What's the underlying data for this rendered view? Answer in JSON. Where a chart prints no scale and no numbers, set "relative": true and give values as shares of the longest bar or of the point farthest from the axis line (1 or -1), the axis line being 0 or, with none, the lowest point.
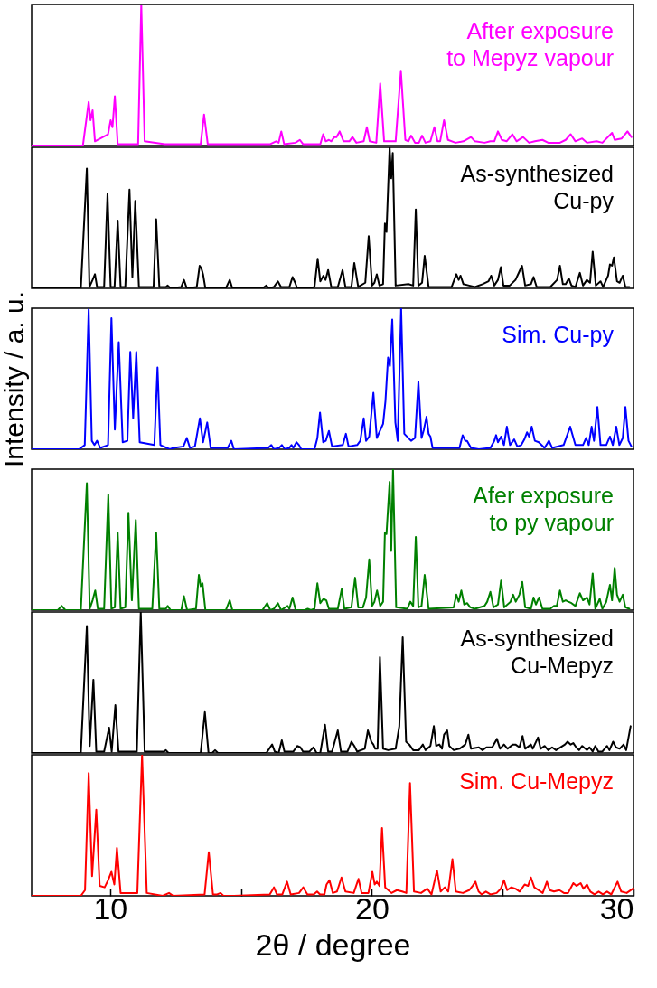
{
  "chart_data": [
    {
      "type": "line",
      "relative": true,
      "xlim": [
        7,
        30
      ],
      "tick_labels": false,
      "series": [
        {
          "name": "After exposure\nto Mepyz vapour",
          "color": "#ff00ff",
          "x": [
            7,
            8.96,
            9.18,
            9.25,
            9.33,
            9.42,
            9.92,
            10.02,
            10.09,
            10.18,
            10.29,
            11.07,
            11.19,
            11.32,
            12.09,
            12.13,
            13.46,
            13.59,
            13.73,
            14.64,
            16.12,
            16.34,
            16.44,
            16.54,
            16.65,
            17.08,
            17.25,
            17.37,
            18.03,
            18.14,
            18.24,
            18.36,
            18.45,
            18.57,
            18.65,
            18.77,
            18.92,
            19.14,
            19.26,
            19.41,
            19.69,
            19.81,
            19.92,
            20.17,
            20.32,
            20.47,
            20.91,
            21.11,
            21.28,
            21.4,
            21.5,
            21.65,
            21.8,
            21.92,
            22.05,
            22.24,
            22.39,
            22.51,
            22.61,
            22.76,
            22.91,
            23.2,
            23.5,
            23.79,
            23.94,
            24.31,
            24.53,
            24.68,
            24.82,
            24.97,
            25.15,
            25.37,
            25.53,
            25.78,
            26.01,
            26.23,
            26.52,
            26.74,
            27.19,
            27.41,
            27.6,
            27.78,
            28.04,
            28.22,
            28.59,
            28.81,
            29.18,
            29.28,
            29.55,
            29.77,
            29.92
          ],
          "values": [
            0,
            0,
            0.31,
            0.18,
            0.25,
            0.03,
            0.08,
            0.18,
            0.13,
            0.35,
            0.01,
            0.01,
            1,
            0.03,
            0.01,
            0.01,
            0.01,
            0.22,
            0.01,
            0.01,
            0.01,
            0.03,
            0.02,
            0.1,
            0.01,
            0.02,
            0.04,
            0.01,
            0.01,
            0.08,
            0.03,
            0.04,
            0.03,
            0.06,
            0.06,
            0.1,
            0.03,
            0.03,
            0.06,
            0.02,
            0.03,
            0.13,
            0.03,
            0.02,
            0.44,
            0.03,
            0.03,
            0.53,
            0.04,
            0.03,
            0.07,
            0.02,
            0.02,
            0.07,
            0.02,
            0.03,
            0.13,
            0.03,
            0.03,
            0.18,
            0.04,
            0.02,
            0.03,
            0.06,
            0.03,
            0.02,
            0.03,
            0.03,
            0.1,
            0.04,
            0.03,
            0.08,
            0.03,
            0.06,
            0.02,
            0.03,
            0.04,
            0.02,
            0.02,
            0.04,
            0.08,
            0.03,
            0.05,
            0.02,
            0.03,
            0.02,
            0.09,
            0.04,
            0.05,
            0.1,
            0.06
          ]
        }
      ]
    },
    {
      "type": "line",
      "relative": true,
      "xlim": [
        7,
        30
      ],
      "tick_labels": false,
      "series": [
        {
          "name": "As-synthesized\nCu-py",
          "color": "#000000",
          "x": [
            7,
            8.88,
            9.11,
            9.21,
            9.33,
            9.42,
            9.5,
            9.77,
            9.9,
            10.02,
            10.17,
            10.29,
            10.4,
            10.58,
            10.74,
            10.85,
            10.96,
            11.1,
            11.66,
            11.76,
            11.88,
            12.13,
            12.2,
            12.31,
            12.72,
            12.82,
            12.93,
            13.31,
            13.42,
            13.49,
            13.55,
            13.64,
            14.42,
            14.57,
            14.67,
            15.82,
            15.97,
            16.06,
            16.26,
            16.41,
            16.53,
            16.85,
            16.97,
            17.07,
            17.15,
            17.59,
            17.81,
            17.93,
            18.03,
            18.15,
            18.23,
            18.33,
            18.45,
            18.7,
            18.88,
            18.99,
            19.22,
            19.33,
            19.48,
            19.75,
            19.88,
            20.01,
            20.1,
            20.19,
            20.29,
            20.43,
            20.5,
            20.56,
            20.68,
            20.74,
            20.8,
            20.91,
            21.4,
            21.58,
            21.68,
            21.78,
            21.92,
            22.02,
            22.17,
            23.05,
            23.23,
            23.32,
            23.39,
            23.5,
            23.72,
            23.94,
            24.23,
            24.46,
            24.56,
            24.68,
            24.82,
            24.93,
            25.03,
            25.27,
            25.49,
            25.64,
            25.74,
            25.86,
            26.08,
            26.18,
            26.3,
            26.6,
            26.82,
            27.08,
            27.19,
            27.3,
            27.41,
            27.53,
            27.63,
            27.78,
            27.95,
            28.07,
            28.22,
            28.34,
            28.44,
            28.56,
            28.74,
            28.84,
            29.03,
            29.1,
            29.18,
            29.25,
            29.37,
            29.47,
            29.59,
            29.69,
            29.84
          ],
          "values": [
            0,
            0,
            0.85,
            0.01,
            0.06,
            0.1,
            0.01,
            0.01,
            0.67,
            0.01,
            0.01,
            0.48,
            0.01,
            0.01,
            0.7,
            0.08,
            0.62,
            0.01,
            0.01,
            0.49,
            0.01,
            0.01,
            0.02,
            0,
            0.01,
            0.06,
            0,
            0.01,
            0.16,
            0.14,
            0.1,
            0,
            0,
            0.06,
            0,
            0,
            0.02,
            0,
            0.01,
            0.05,
            0.01,
            0.01,
            0.08,
            0.04,
            0,
            0,
            0.01,
            0.21,
            0.05,
            0.09,
            0.06,
            0.13,
            0.01,
            0.01,
            0.13,
            0.01,
            0.01,
            0.18,
            0.01,
            0.04,
            0.37,
            0.02,
            0.04,
            0.1,
            0.02,
            0.03,
            0.46,
            0.4,
            1,
            0.78,
            0.96,
            0.02,
            0.03,
            0.02,
            0.56,
            0.02,
            0.04,
            0.23,
            0.01,
            0.01,
            0.1,
            0.06,
            0.09,
            0.03,
            0.02,
            0.01,
            0.03,
            0.05,
            0.09,
            0.02,
            0.06,
            0.15,
            0.02,
            0.02,
            0.06,
            0.12,
            0.16,
            0.02,
            0.03,
            0.08,
            0.01,
            0.01,
            0.01,
            0.06,
            0.16,
            0.03,
            0.03,
            0.07,
            0.02,
            0.01,
            0.11,
            0.02,
            0.06,
            0.04,
            0.26,
            0.02,
            0.05,
            0.01,
            0.09,
            0.17,
            0.16,
            0.22,
            0.05,
            0.04,
            0.09,
            0.01,
            0.01
          ]
        }
      ]
    },
    {
      "type": "line",
      "relative": true,
      "xlim": [
        7,
        30
      ],
      "tick_labels": false,
      "ylabel": "Intensity / a. u.",
      "series": [
        {
          "name": "Sim. Cu-py",
          "color": "#0000ff",
          "x": [
            7,
            8.81,
            9.03,
            9.18,
            9.3,
            9.4,
            9.5,
            9.62,
            9.92,
            10.05,
            10.18,
            10.33,
            10.48,
            10.66,
            10.77,
            10.88,
            11,
            11.13,
            11.69,
            11.81,
            11.92,
            12.28,
            12.43,
            12.8,
            12.93,
            13.05,
            13.24,
            13.43,
            13.55,
            13.71,
            13.84,
            14.49,
            14.63,
            14.73,
            16.04,
            16.16,
            16.26,
            16.46,
            16.56,
            16.68,
            16.85,
            16.93,
            17,
            17.12,
            17.22,
            17.3,
            17.81,
            17.92,
            18.02,
            18.14,
            18.24,
            18.36,
            18.48,
            18.89,
            19.01,
            19.11,
            19.44,
            19.56,
            19.69,
            19.78,
            19.9,
            20.06,
            20.19,
            20.43,
            20.52,
            20.62,
            20.69,
            20.78,
            20.9,
            20.99,
            21.12,
            21.24,
            21.5,
            21.65,
            21.78,
            21.9,
            21.99,
            22.09,
            22.17,
            22.24,
            22.32,
            23.35,
            23.47,
            23.57,
            23.64,
            23.79,
            24.09,
            24.53,
            24.68,
            24.75,
            24.82,
            24.94,
            25.05,
            25.16,
            25.28,
            25.44,
            25.56,
            25.71,
            25.83,
            25.93,
            26.01,
            26.11,
            26.23,
            26.38,
            26.6,
            26.77,
            26.89,
            27.33,
            27.58,
            27.78,
            28.07,
            28.19,
            28.29,
            28.4,
            28.49,
            28.62,
            28.74,
            28.96,
            29.1,
            29.21,
            29.34,
            29.46,
            29.59,
            29.69,
            29.81,
            29.92
          ],
          "values": [
            0,
            0,
            0.03,
            0.99,
            0.06,
            0.03,
            0.06,
            0.01,
            0.03,
            0.93,
            0.14,
            0.76,
            0.05,
            0.06,
            0.69,
            0.22,
            0.69,
            0.05,
            0.03,
            0.58,
            0.03,
            0,
            0.01,
            0.02,
            0.08,
            0.01,
            0.02,
            0.22,
            0.05,
            0.19,
            0.01,
            0.01,
            0.06,
            0,
            0.01,
            0.03,
            0,
            0.01,
            0.03,
            0,
            0.01,
            0.03,
            0.01,
            0.05,
            0.03,
            0,
            0,
            0.08,
            0.26,
            0.05,
            0.06,
            0.13,
            0.02,
            0.03,
            0.11,
            0.02,
            0.03,
            0.06,
            0.22,
            0.06,
            0.09,
            0.4,
            0.08,
            0.18,
            0.34,
            0.65,
            0.59,
            0.92,
            0.19,
            0.06,
            1,
            0.11,
            0.06,
            0.08,
            0.48,
            0.08,
            0.14,
            0.23,
            0.11,
            0.09,
            0.01,
            0.01,
            0.1,
            0.06,
            0.06,
            0.01,
            0,
            0.01,
            0.06,
            0.1,
            0.05,
            0.09,
            0.03,
            0.16,
            0.03,
            0.07,
            0.02,
            0.03,
            0.07,
            0.12,
            0.09,
            0.16,
            0.06,
            0.05,
            0.01,
            0.06,
            0.01,
            0.03,
            0.16,
            0.03,
            0.03,
            0.08,
            0.03,
            0.16,
            0.06,
            0.3,
            0.03,
            0.03,
            0.09,
            0.03,
            0.16,
            0.03,
            0.08,
            0.3,
            0.06,
            0.02
          ]
        }
      ]
    },
    {
      "type": "line",
      "relative": true,
      "xlim": [
        7,
        30
      ],
      "tick_labels": false,
      "series": [
        {
          "name": "Afer exposure\nto py vapour",
          "color": "#008000",
          "x": [
            7,
            8,
            8.15,
            8.29,
            8.88,
            9.11,
            9.22,
            9.33,
            9.43,
            9.53,
            9.77,
            9.93,
            10.05,
            10.18,
            10.29,
            10.4,
            10.58,
            10.7,
            10.83,
            10.98,
            11.1,
            11.61,
            11.76,
            11.88,
            12.13,
            12.2,
            12.31,
            12.72,
            12.82,
            12.94,
            13.28,
            13.39,
            13.46,
            13.53,
            13.64,
            14.42,
            14.57,
            14.67,
            15.82,
            16,
            16.12,
            16.26,
            16.41,
            16.53,
            16.78,
            16.85,
            16.97,
            17.09,
            17.44,
            17.55,
            17.67,
            17.81,
            17.92,
            18.03,
            18.15,
            18.26,
            18.36,
            18.7,
            18.85,
            18.95,
            19.22,
            19.36,
            19.48,
            19.66,
            19.78,
            19.9,
            20.01,
            20.1,
            20.2,
            20.32,
            20.43,
            20.5,
            20.56,
            20.68,
            20.74,
            20.81,
            20.93,
            21.36,
            21.47,
            21.58,
            21.68,
            21.78,
            21.9,
            22.02,
            22.17,
            23.13,
            23.23,
            23.32,
            23.42,
            23.53,
            23.64,
            23.76,
            23.94,
            24.31,
            24.41,
            24.53,
            24.65,
            24.82,
            24.94,
            25.06,
            25.3,
            25.4,
            25.5,
            25.64,
            25.75,
            25.86,
            26.08,
            26.18,
            26.27,
            26.39,
            26.52,
            26.82,
            26.96,
            27.07,
            27.19,
            27.3,
            27.41,
            27.51,
            27.63,
            27.78,
            27.95,
            28.07,
            28.22,
            28.32,
            28.44,
            28.54,
            28.71,
            28.81,
            28.96,
            29.1,
            29.18,
            29.28,
            29.37,
            29.47,
            29.59,
            29.69,
            29.84
          ],
          "values": [
            0,
            0,
            0.03,
            0,
            0,
            0.9,
            0.01,
            0.07,
            0.14,
            0.01,
            0.01,
            0.82,
            0.01,
            0.02,
            0.55,
            0.01,
            0.02,
            0.69,
            0.07,
            0.64,
            0.01,
            0.01,
            0.55,
            0.01,
            0.01,
            0.03,
            0,
            0,
            0.1,
            0,
            0.01,
            0.25,
            0.17,
            0.19,
            0,
            0,
            0.07,
            0,
            0,
            0.05,
            0,
            0.01,
            0.05,
            0,
            0.03,
            0.01,
            0.09,
            0,
            0,
            0.01,
            0,
            0.01,
            0.19,
            0.05,
            0.08,
            0.07,
            0.01,
            0.01,
            0.15,
            0.01,
            0.02,
            0.23,
            0.02,
            0.02,
            0.09,
            0.36,
            0.03,
            0.06,
            0.14,
            0.03,
            0.06,
            0.55,
            0.54,
            0.91,
            0.42,
            1,
            0.02,
            0.01,
            0.06,
            0.03,
            0.52,
            0.02,
            0.03,
            0.25,
            0.01,
            0.02,
            0.11,
            0.06,
            0.14,
            0.04,
            0.05,
            0.02,
            0.01,
            0.03,
            0.06,
            0.13,
            0.02,
            0.04,
            0.21,
            0.02,
            0.06,
            0.11,
            0.06,
            0.11,
            0.2,
            0.02,
            0.01,
            0.09,
            0.04,
            0.09,
            0.01,
            0.01,
            0.03,
            0.03,
            0.14,
            0.06,
            0.07,
            0.06,
            0.05,
            0.03,
            0.12,
            0.07,
            0.09,
            0.04,
            0.26,
            0.01,
            0.08,
            0.01,
            0.06,
            0.18,
            0.07,
            0.3,
            0.11,
            0.06,
            0.11,
            0.02,
            0.01
          ]
        }
      ]
    },
    {
      "type": "line",
      "relative": true,
      "xlim": [
        7,
        30
      ],
      "tick_labels": false,
      "series": [
        {
          "name": "As-synthesized\nCu-Mepyz",
          "color": "#000000",
          "x": [
            7,
            8.88,
            9.11,
            9.22,
            9.36,
            9.47,
            9.77,
            9.96,
            10.06,
            10.2,
            10.32,
            11.02,
            11.17,
            11.32,
            12.06,
            12.13,
            12.23,
            12.8,
            13.46,
            13.62,
            13.76,
            13.9,
            14.01,
            14.12,
            15.97,
            16.19,
            16.29,
            16.44,
            16.56,
            16.66,
            17,
            17.15,
            17.27,
            17.37,
            17.62,
            17.77,
            17.89,
            18.03,
            18.21,
            18.33,
            18.48,
            18.7,
            18.82,
            19.07,
            19.22,
            19.33,
            19.44,
            19.73,
            19.85,
            19.98,
            20.06,
            20.13,
            20.22,
            20.31,
            20.43,
            20.62,
            20.91,
            21.05,
            21.18,
            21.31,
            21.43,
            21.58,
            21.8,
            21.95,
            22.05,
            22.24,
            22.37,
            22.46,
            22.58,
            22.68,
            22.76,
            22.88,
            22.96,
            23.13,
            23.35,
            23.57,
            23.69,
            23.79,
            24.09,
            24.23,
            24.38,
            24.6,
            24.78,
            24.9,
            25.05,
            25.19,
            25.39,
            25.49,
            25.64,
            25.76,
            25.86,
            26.08,
            26.15,
            26.35,
            26.45,
            26.6,
            26.74,
            26.89,
            27.04,
            27.38,
            27.48,
            27.6,
            27.7,
            27.81,
            27.92,
            28.04,
            28.22,
            28.32,
            28.44,
            28.54,
            28.66,
            28.81,
            28.99,
            29.08,
            29.22,
            29.33,
            29.47,
            29.62,
            29.72,
            29.89
          ],
          "values": [
            0,
            0,
            0.9,
            0.05,
            0.52,
            0.01,
            0.01,
            0.18,
            0.01,
            0.34,
            0.01,
            0.01,
            1,
            0.01,
            0.01,
            0.02,
            0,
            0,
            0,
            0.29,
            0,
            0,
            0.02,
            0,
            0,
            0.06,
            0.01,
            0,
            0.09,
            0.01,
            0.01,
            0.05,
            0.04,
            0.01,
            0.01,
            0.04,
            0,
            0,
            0.2,
            0.01,
            0.01,
            0.16,
            0.01,
            0.01,
            0.08,
            0.05,
            0.01,
            0.03,
            0.16,
            0.08,
            0.06,
            0.03,
            0.03,
            0.68,
            0.03,
            0.02,
            0.03,
            0.19,
            0.82,
            0.08,
            0.06,
            0.02,
            0.02,
            0.06,
            0.02,
            0.05,
            0.19,
            0.05,
            0.06,
            0.03,
            0.13,
            0.16,
            0.05,
            0.02,
            0.03,
            0.06,
            0.13,
            0.03,
            0.04,
            0.02,
            0.04,
            0.04,
            0.1,
            0.03,
            0.06,
            0.03,
            0.06,
            0.06,
            0.04,
            0.12,
            0.03,
            0.06,
            0.03,
            0.11,
            0.03,
            0.05,
            0.02,
            0.04,
            0.02,
            0.06,
            0.08,
            0.06,
            0.07,
            0.04,
            0.02,
            0.05,
            0.02,
            0.04,
            0.01,
            0.05,
            0.01,
            0.01,
            0.05,
            0.02,
            0.08,
            0.04,
            0.03,
            0.06,
            0.02,
            0.19
          ]
        }
      ]
    },
    {
      "type": "line",
      "relative": true,
      "xlim": [
        7,
        30
      ],
      "xticks": [
        10,
        {
          "value": 15,
          "label": null
        },
        20,
        {
          "value": 25,
          "label": null
        },
        30
      ],
      "tick_labels": "x",
      "xlabel": "2θ / degree",
      "series": [
        {
          "name": "Sim. Cu-Mepyz",
          "color": "#ff0000",
          "x": [
            7,
            8.88,
            9.04,
            9.18,
            9.31,
            9.47,
            9.6,
            9.79,
            9.92,
            10.05,
            10.16,
            10.26,
            10.4,
            11.04,
            11.22,
            11.4,
            12.01,
            12.25,
            12.41,
            13.61,
            13.77,
            13.93,
            14.09,
            14.22,
            14.33,
            14.73,
            16.1,
            16.26,
            16.37,
            16.58,
            16.76,
            16.9,
            17.22,
            17.38,
            17.54,
            17.78,
            17.91,
            18.02,
            18.19,
            18.27,
            18.38,
            18.51,
            18.67,
            18.84,
            18.99,
            19.31,
            19.49,
            19.61,
            19.87,
            20.02,
            20.11,
            20.19,
            20.29,
            20.39,
            20.51,
            20.75,
            20.96,
            21.16,
            21.32,
            21.46,
            21.61,
            21.88,
            22.12,
            22.28,
            22.49,
            22.63,
            22.79,
            22.92,
            23.08,
            23.21,
            23.48,
            23.72,
            23.85,
            23.96,
            24.08,
            24.2,
            24.36,
            24.53,
            24.77,
            24.93,
            25.05,
            25.17,
            25.33,
            25.49,
            25.65,
            25.84,
            25.97,
            26.08,
            26.21,
            26.37,
            26.53,
            26.69,
            26.8,
            26.96,
            27.17,
            27.34,
            27.5,
            27.7,
            27.82,
            27.98,
            28.09,
            28.22,
            28.35,
            28.51,
            28.67,
            28.83,
            28.99,
            29.15,
            29.39,
            29.53,
            29.74,
            29.98
          ],
          "values": [
            0,
            0,
            0.04,
            0.87,
            0.14,
            0.61,
            0.07,
            0.06,
            0.11,
            0.17,
            0.08,
            0.34,
            0.02,
            0.02,
            1,
            0.02,
            0,
            0.02,
            0,
            0.01,
            0.31,
            0.01,
            0.01,
            0.02,
            0,
            0,
            0.01,
            0.06,
            0.01,
            0.01,
            0.1,
            0.01,
            0.02,
            0.06,
            0.01,
            0.01,
            0.03,
            0.01,
            0.01,
            0.08,
            0.11,
            0.02,
            0.03,
            0.13,
            0.03,
            0.02,
            0.12,
            0.02,
            0.02,
            0.17,
            0.08,
            0.1,
            0.07,
            0.48,
            0.06,
            0.02,
            0.04,
            0.03,
            0.02,
            0.8,
            0.03,
            0.02,
            0.05,
            0.01,
            0.18,
            0.03,
            0.06,
            0.03,
            0.26,
            0.03,
            0.02,
            0.04,
            0.07,
            0.1,
            0.03,
            0.01,
            0.03,
            0.01,
            0.02,
            0.05,
            0.11,
            0.04,
            0.06,
            0.05,
            0.03,
            0.08,
            0.07,
            0.13,
            0.06,
            0.04,
            0.02,
            0.1,
            0.04,
            0.03,
            0.04,
            0.02,
            0.02,
            0.09,
            0.07,
            0.09,
            0.05,
            0.08,
            0.03,
            0.01,
            0.03,
            0.01,
            0.03,
            0.01,
            0.1,
            0.03,
            0.02,
            0.05
          ]
        }
      ]
    }
  ]
}
